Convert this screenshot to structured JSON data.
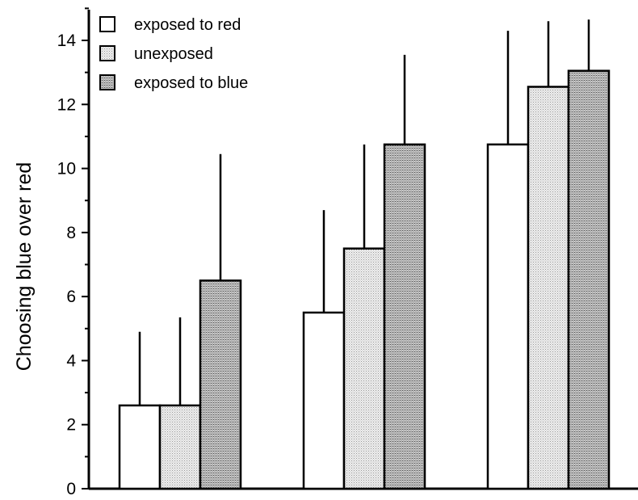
{
  "chart_data": {
    "type": "bar",
    "title": "",
    "xlabel": "",
    "ylabel": "Choosing blue over red",
    "ylim": [
      0,
      15
    ],
    "yticks": [
      0,
      2,
      4,
      6,
      8,
      10,
      12,
      14
    ],
    "categories": [
      "",
      "",
      ""
    ],
    "legend_position": "top-left",
    "grid": false,
    "series": [
      {
        "name": "exposed to red",
        "fill": "white",
        "values": [
          2.6,
          5.5,
          10.75
        ],
        "error": [
          2.3,
          3.2,
          3.55
        ]
      },
      {
        "name": "unexposed",
        "fill": "light-stipple",
        "values": [
          2.6,
          7.5,
          12.55
        ],
        "error": [
          2.75,
          3.25,
          2.05
        ]
      },
      {
        "name": "exposed to blue",
        "fill": "dark-stipple",
        "values": [
          6.5,
          10.75,
          13.05
        ],
        "error": [
          3.95,
          2.8,
          1.6
        ]
      }
    ]
  }
}
